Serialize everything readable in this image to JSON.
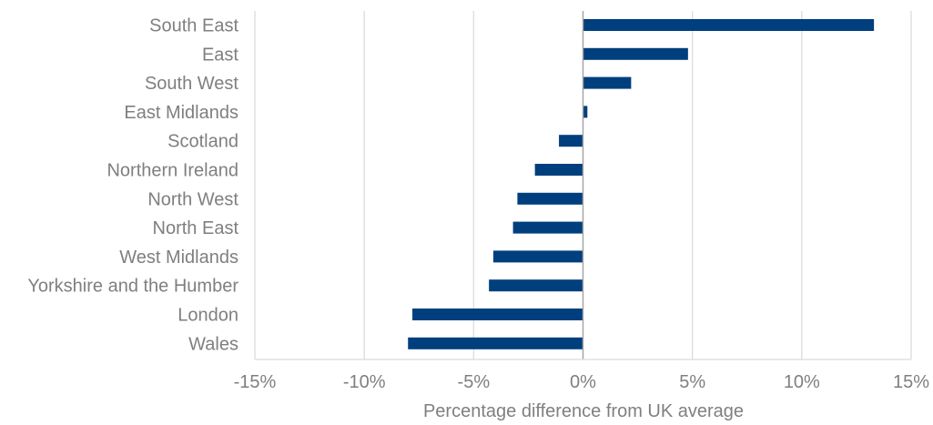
{
  "chart_data": {
    "type": "bar",
    "orientation": "horizontal",
    "title": "",
    "xlabel": "Percentage difference from UK average",
    "ylabel": "",
    "categories": [
      "South East",
      "East",
      "South West",
      "East Midlands",
      "Scotland",
      "Northern Ireland",
      "North West",
      "North East",
      "West Midlands",
      "Yorkshire and the Humber",
      "London",
      "Wales"
    ],
    "values": [
      13.3,
      4.8,
      2.2,
      0.2,
      -1.1,
      -2.2,
      -3.0,
      -3.2,
      -4.1,
      -4.3,
      -7.8,
      -8.0
    ],
    "xlim": [
      -15,
      15
    ],
    "xticks": [
      -15,
      -10,
      -5,
      0,
      5,
      10,
      15
    ],
    "xtick_labels": [
      "-15%",
      "-10%",
      "-5%",
      "0%",
      "5%",
      "10%",
      "15%"
    ],
    "grid": "vertical",
    "legend": "none",
    "colors": {
      "bar": "#003f7d",
      "grid": "#d9d9d9",
      "axis": "#a6a6a6",
      "text": "#7f7f7f"
    }
  }
}
